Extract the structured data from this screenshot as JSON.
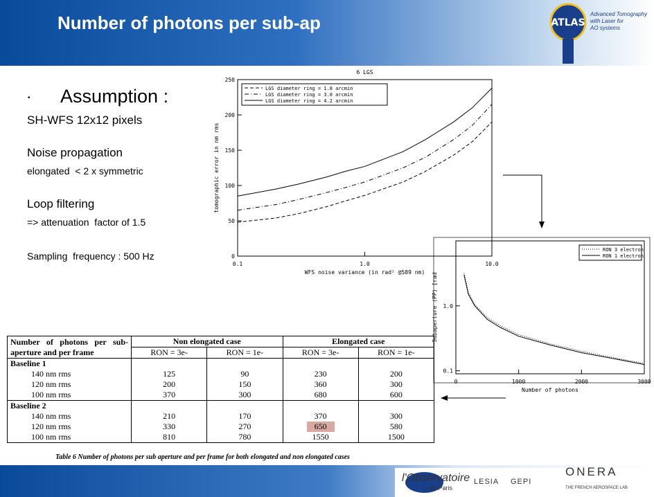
{
  "header": {
    "title": "Number of photons per sub-ap",
    "logo": "ATLAS",
    "logo_caption": [
      "Advanced Tomography",
      "with Laser for",
      "AO systems"
    ]
  },
  "text": {
    "heading": "Assumption :",
    "lines": [
      "SH-WFS 12x12 pixels",
      "Noise propagation",
      "elongated  < 2 x symmetric",
      "Loop filtering",
      "=> attenuation  factor of 1.5",
      "Sampling  frequency : 500 Hz"
    ]
  },
  "chart_data": [
    {
      "type": "line",
      "title": "6 LGS",
      "xlabel": "WFS noise variance (in rad² @589 nm)",
      "ylabel": "tomographic error in nm rms",
      "xscale": "log",
      "xlim": [
        0.1,
        10
      ],
      "xticks": [
        0.1,
        {
          "value": 1,
          "label": "1.0"
        },
        {
          "value": 10,
          "label": "10.0"
        }
      ],
      "ylim": [
        0,
        250
      ],
      "yticks": [
        0,
        50,
        100,
        150,
        200,
        250
      ],
      "legend": "upper left",
      "x": [
        0.1,
        0.2,
        0.3,
        0.5,
        0.7,
        1,
        2,
        3,
        5,
        7,
        10
      ],
      "series": [
        {
          "name": "LGS diameter ring = 1.8 arcmin",
          "color": "#000000",
          "dash": "dashed",
          "values": [
            48,
            54,
            60,
            70,
            78,
            86,
            105,
            120,
            143,
            162,
            190
          ]
        },
        {
          "name": "LGS diameter ring = 3.0 arcmin",
          "color": "#000000",
          "dash": "dashdot",
          "values": [
            65,
            73,
            80,
            90,
            97,
            105,
            125,
            140,
            165,
            185,
            215
          ]
        },
        {
          "name": "LGS diameter ring = 4.2 arcmin",
          "color": "#000000",
          "dash": "solid",
          "values": [
            85,
            95,
            102,
            112,
            120,
            127,
            148,
            165,
            190,
            210,
            238
          ]
        }
      ]
    },
    {
      "type": "line",
      "xlabel": "Number of photons",
      "ylabel": "Subaperture (PP) [rad",
      "yscale": "log",
      "xlim": [
        0,
        3000
      ],
      "xticks": [
        0,
        1000,
        2000,
        3000
      ],
      "ylim": [
        0.09,
        10
      ],
      "yticks": [
        0.1,
        {
          "value": 1,
          "label": "1.0"
        }
      ],
      "legend": "upper right",
      "x": [
        130,
        200,
        300,
        500,
        700,
        1000,
        1500,
        2000,
        2500,
        3000
      ],
      "series": [
        {
          "name": "RON 3 electron",
          "color": "#000000",
          "dash": "dotted",
          "values": [
            3.2,
            1.6,
            1.05,
            0.66,
            0.5,
            0.36,
            0.26,
            0.2,
            0.16,
            0.13
          ]
        },
        {
          "name": "RON 1 electron",
          "color": "#000000",
          "dash": "solid",
          "values": [
            3.0,
            1.5,
            1.0,
            0.62,
            0.47,
            0.34,
            0.25,
            0.19,
            0.155,
            0.125
          ]
        }
      ]
    }
  ],
  "table": {
    "header_top": [
      "Number of photons per sub-aperture and per frame",
      "Non elongated case",
      "Elongated case"
    ],
    "header_sub": [
      "RON = 3e-",
      "RON = 1e-",
      "RON = 3e-",
      "RON = 1e-"
    ],
    "sections": [
      {
        "name": "Baseline 1",
        "rows": [
          [
            "140 nm rms",
            125,
            90,
            230,
            200
          ],
          [
            "120 nm rms",
            200,
            150,
            360,
            300
          ],
          [
            "100 nm rms",
            370,
            300,
            680,
            600
          ]
        ]
      },
      {
        "name": "Baseline 2",
        "rows": [
          [
            "140 nm rms",
            210,
            170,
            370,
            300
          ],
          [
            "120 nm rms",
            330,
            270,
            650,
            580
          ],
          [
            "100 nm rms",
            810,
            780,
            1550,
            1500
          ]
        ]
      }
    ],
    "caption": "Table 6 Number of photons per sub aperture and per frame for both elongated and non elongated cases"
  },
  "footer": {
    "obs": "l'Observatoire",
    "obs_sub": "de Paris",
    "lesia": "LESIA",
    "gepi": "GEPI",
    "onera": "ONERA",
    "onera_sub": "THE FRENCH AEROSPACE LAB"
  }
}
